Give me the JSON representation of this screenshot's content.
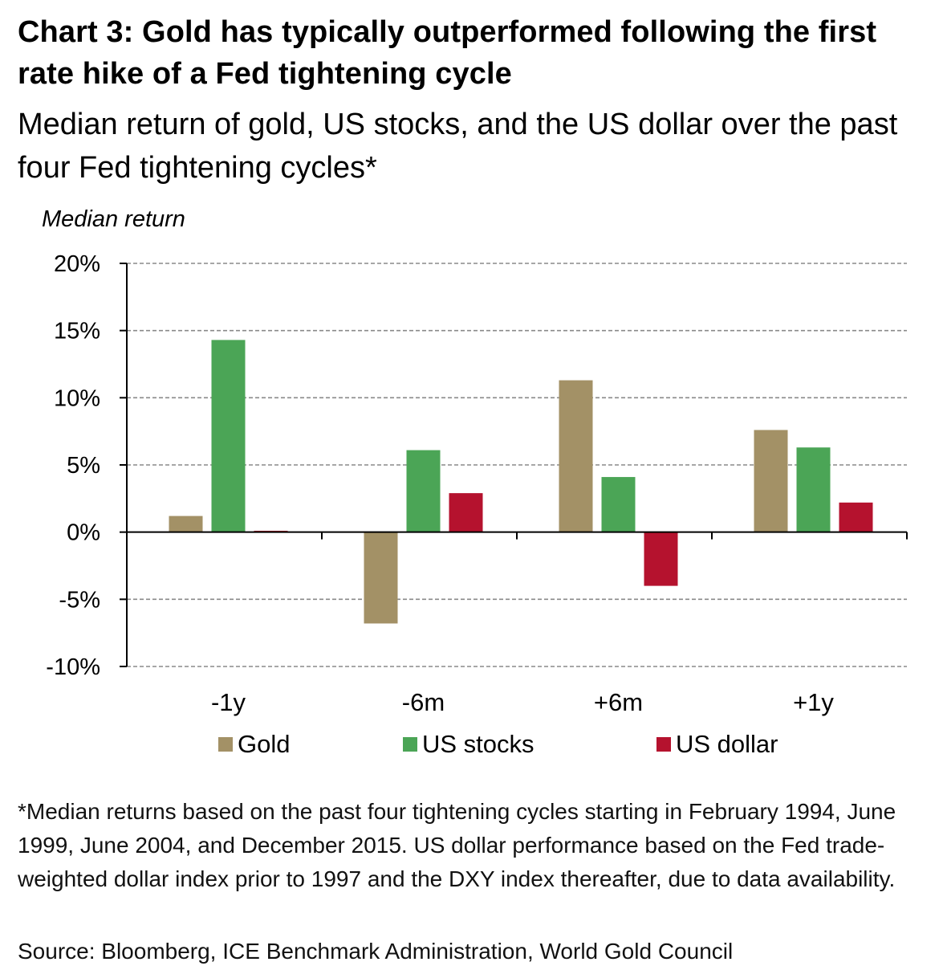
{
  "title": "Chart 3: Gold has typically outperformed following the first rate hike of a Fed tightening cycle",
  "subtitle": "Median return of gold, US stocks, and the US dollar over the past four Fed tightening cycles*",
  "footnote": "*Median returns based on the past four tightening cycles starting in February 1994, June 1999, June 2004, and December 2015. US dollar performance based on the Fed trade-weighted dollar index prior to 1997 and the DXY index thereafter, due to data availability.",
  "source": "Source: Bloomberg, ICE Benchmark Administration, World Gold Council",
  "chart_data": {
    "type": "bar",
    "ylabel": "Median return",
    "xlabel": "",
    "ylim": [
      -10,
      20
    ],
    "yticks": [
      20,
      15,
      10,
      5,
      0,
      -5,
      -10
    ],
    "ytick_labels": [
      "20%",
      "15%",
      "10%",
      "5%",
      "0%",
      "-5%",
      "-10%"
    ],
    "grid": "horizontal dashed",
    "legend_position": "bottom",
    "categories": [
      "-1y",
      "-6m",
      "+6m",
      "+1y"
    ],
    "series": [
      {
        "name": "Gold",
        "color": "#A39166",
        "values": [
          1.2,
          -6.8,
          11.3,
          7.6
        ]
      },
      {
        "name": "US stocks",
        "color": "#4BA556",
        "values": [
          14.3,
          6.1,
          4.1,
          6.3
        ]
      },
      {
        "name": "US dollar",
        "color": "#B5122E",
        "values": [
          0.1,
          2.9,
          -4.0,
          2.2
        ]
      }
    ]
  }
}
